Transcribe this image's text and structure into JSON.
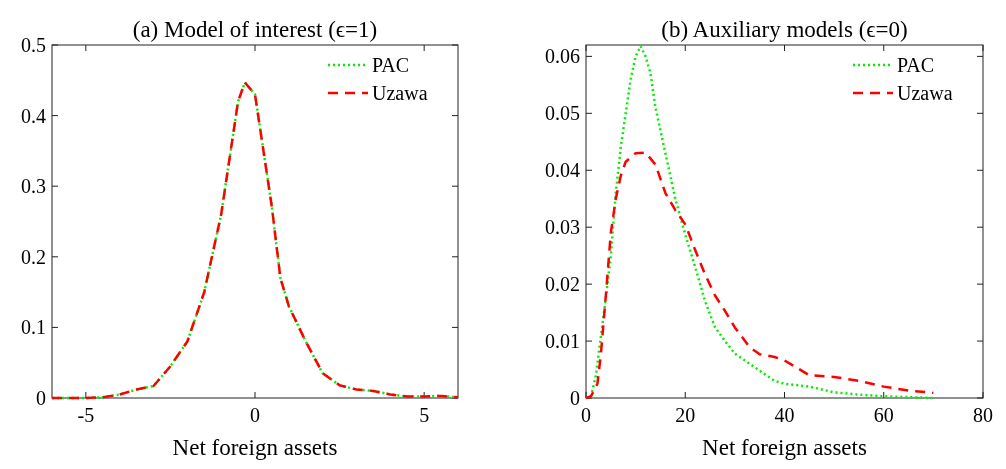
{
  "chart_data": [
    {
      "type": "line",
      "title": "(a) Model of interest (ϵ=1)",
      "xlabel": "Net foreign assets",
      "xlim": [
        -6,
        6
      ],
      "xticks": [
        -5,
        0,
        5
      ],
      "ylim": [
        0,
        0.5
      ],
      "yticks": [
        0,
        0.1,
        0.2,
        0.3,
        0.4,
        0.5
      ],
      "legend": "top right",
      "grid": false,
      "series": [
        {
          "name": "PAC",
          "color": "#00ee00",
          "line_style": "dotted",
          "x": [
            -6,
            -5,
            -4.5,
            -4,
            -3.5,
            -3,
            -2.5,
            -2,
            -1.5,
            -1,
            -0.75,
            -0.5,
            -0.3,
            0,
            0.25,
            0.5,
            0.75,
            1,
            1.5,
            2,
            2.5,
            3,
            3.5,
            4,
            4.5,
            5,
            5.5,
            6
          ],
          "values": [
            0,
            0,
            0.001,
            0.005,
            0.012,
            0.017,
            0.045,
            0.08,
            0.15,
            0.26,
            0.34,
            0.42,
            0.447,
            0.43,
            0.35,
            0.27,
            0.17,
            0.13,
            0.08,
            0.035,
            0.018,
            0.012,
            0.01,
            0.005,
            0.002,
            0.002,
            0.003,
            0.001
          ]
        },
        {
          "name": "Uzawa",
          "color": "#ff0000",
          "line_style": "dashed",
          "x": [
            -6,
            -5,
            -4.5,
            -4,
            -3.5,
            -3,
            -2.5,
            -2,
            -1.5,
            -1,
            -0.75,
            -0.5,
            -0.3,
            0,
            0.25,
            0.5,
            0.75,
            1,
            1.5,
            2,
            2.5,
            3,
            3.5,
            4,
            4.5,
            5,
            5.5,
            6
          ],
          "values": [
            0,
            0,
            0.001,
            0.005,
            0.012,
            0.017,
            0.045,
            0.08,
            0.15,
            0.26,
            0.34,
            0.42,
            0.447,
            0.43,
            0.35,
            0.27,
            0.17,
            0.13,
            0.08,
            0.035,
            0.018,
            0.012,
            0.01,
            0.005,
            0.002,
            0.002,
            0.003,
            0.001
          ]
        }
      ]
    },
    {
      "type": "line",
      "title": "(b) Auxiliary models (ϵ=0)",
      "xlabel": "Net foreign assets",
      "xlim": [
        0,
        80
      ],
      "xticks": [
        0,
        20,
        40,
        60,
        80
      ],
      "ylim": [
        0,
        0.062
      ],
      "yticks": [
        0,
        0.01,
        0.02,
        0.03,
        0.04,
        0.05,
        0.06
      ],
      "legend": "top right",
      "grid": false,
      "series": [
        {
          "name": "PAC",
          "color": "#00ee00",
          "line_style": "dotted",
          "x": [
            0,
            1,
            2,
            4,
            5,
            6,
            7,
            8,
            9,
            10,
            11,
            12,
            13,
            14,
            16,
            18,
            20,
            22,
            24,
            26,
            28,
            30,
            35,
            38,
            40,
            45,
            50,
            55,
            60,
            70
          ],
          "values": [
            0,
            0.0002,
            0.004,
            0.0176,
            0.025,
            0.036,
            0.044,
            0.05,
            0.056,
            0.06,
            0.0618,
            0.06,
            0.057,
            0.051,
            0.043,
            0.035,
            0.0287,
            0.023,
            0.017,
            0.0124,
            0.01,
            0.0078,
            0.0048,
            0.003,
            0.0025,
            0.002,
            0.001,
            0.0006,
            0.0003,
            0
          ]
        },
        {
          "name": "Uzawa",
          "color": "#ff0000",
          "line_style": "dashed",
          "x": [
            0,
            1,
            2.3,
            3,
            4,
            5,
            6,
            7,
            8,
            10,
            12,
            14,
            16,
            18,
            20,
            22,
            24,
            26,
            28,
            30,
            33,
            35,
            38,
            40,
            45,
            50,
            55,
            60,
            65,
            70
          ],
          "values": [
            0,
            0.0003,
            0.0025,
            0.0077,
            0.018,
            0.029,
            0.035,
            0.039,
            0.0415,
            0.043,
            0.0431,
            0.041,
            0.036,
            0.033,
            0.0305,
            0.026,
            0.0217,
            0.018,
            0.0153,
            0.0124,
            0.0089,
            0.0077,
            0.0072,
            0.0066,
            0.004,
            0.0037,
            0.003,
            0.002,
            0.0013,
            0.0009
          ]
        }
      ]
    }
  ]
}
